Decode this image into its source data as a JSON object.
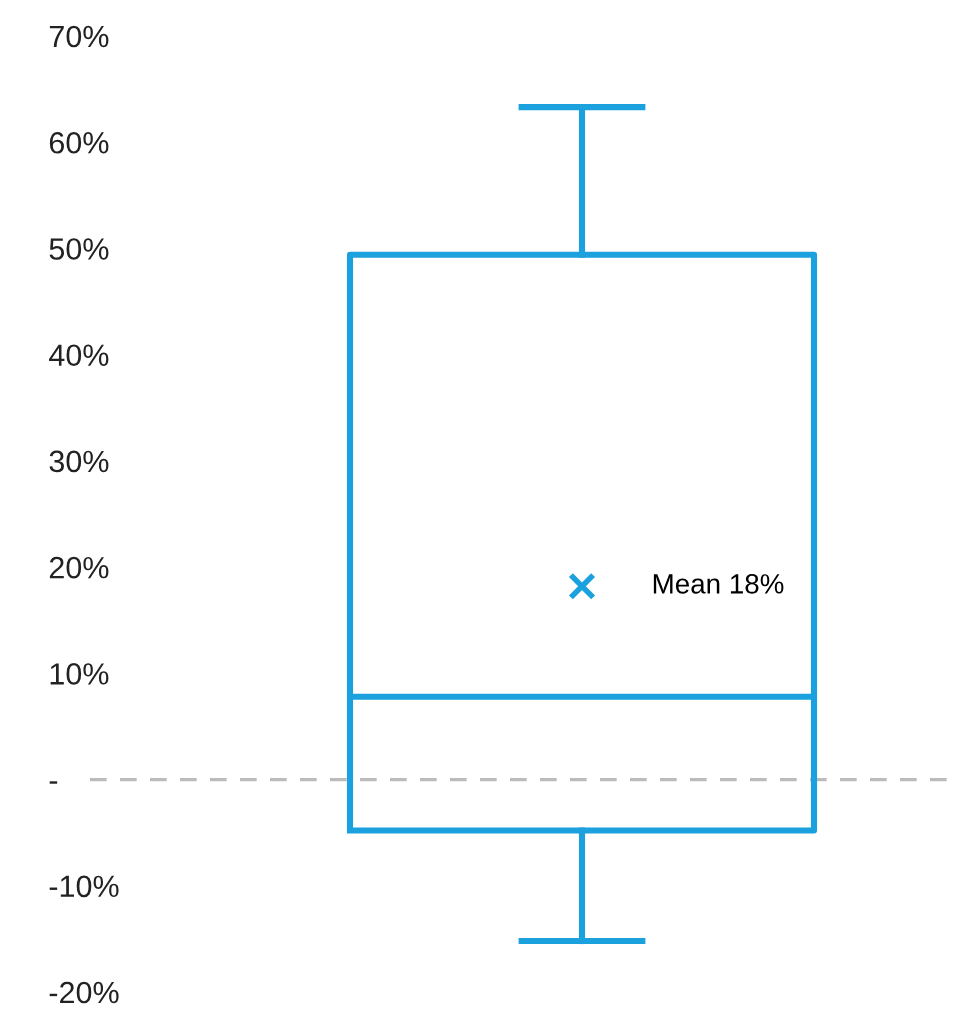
{
  "chart_data": {
    "type": "box",
    "categories": [
      null
    ],
    "series": [
      {
        "color": "#1ba1dd",
        "boxes": [
          {
            "low": -15.2,
            "q1": -4.8,
            "median": 7.8,
            "q3": 49.4,
            "high": 63.3,
            "mean": 18.2
          }
        ]
      }
    ],
    "ylim": [
      -20,
      70
    ],
    "yticks": [
      {
        "value": -20,
        "label": "-20%"
      },
      {
        "value": -10,
        "label": "-10%"
      },
      {
        "value": 0,
        "label": "-"
      },
      {
        "value": 10,
        "label": "10%"
      },
      {
        "value": 20,
        "label": "20%"
      },
      {
        "value": 30,
        "label": "30%"
      },
      {
        "value": 40,
        "label": "40%"
      },
      {
        "value": 50,
        "label": "50%"
      },
      {
        "value": 60,
        "label": "60%"
      },
      {
        "value": 70,
        "label": "70%"
      }
    ],
    "tick_labels": "y",
    "grid": false,
    "legend": false,
    "ref_lines": [
      {
        "axis": "y",
        "value": 0,
        "color": "#bbbbbb",
        "line_style": "dashed"
      }
    ],
    "annotations": [
      "Mean 18%"
    ]
  }
}
